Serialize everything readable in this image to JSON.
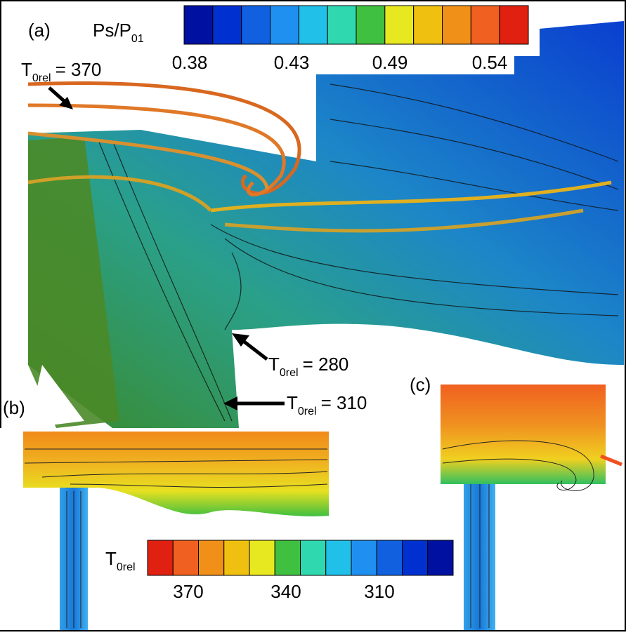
{
  "panels": {
    "a": "(a)",
    "b": "(b)",
    "c": "(c)"
  },
  "pressure_legend": {
    "symbol": "Ps/P",
    "subscript": "01",
    "labels": [
      "0.38",
      "0.43",
      "0.49",
      "0.54"
    ]
  },
  "temperature_legend": {
    "symbol": "T",
    "subscript": "0rel",
    "labels": [
      "370",
      "340",
      "310"
    ]
  },
  "annotations": [
    {
      "symbol": "T",
      "subscript": "0rel",
      "text": "= 370"
    },
    {
      "symbol": "T",
      "subscript": "0rel",
      "text": "= 280"
    },
    {
      "symbol": "T",
      "subscript": "0rel",
      "text": "= 310"
    }
  ]
}
